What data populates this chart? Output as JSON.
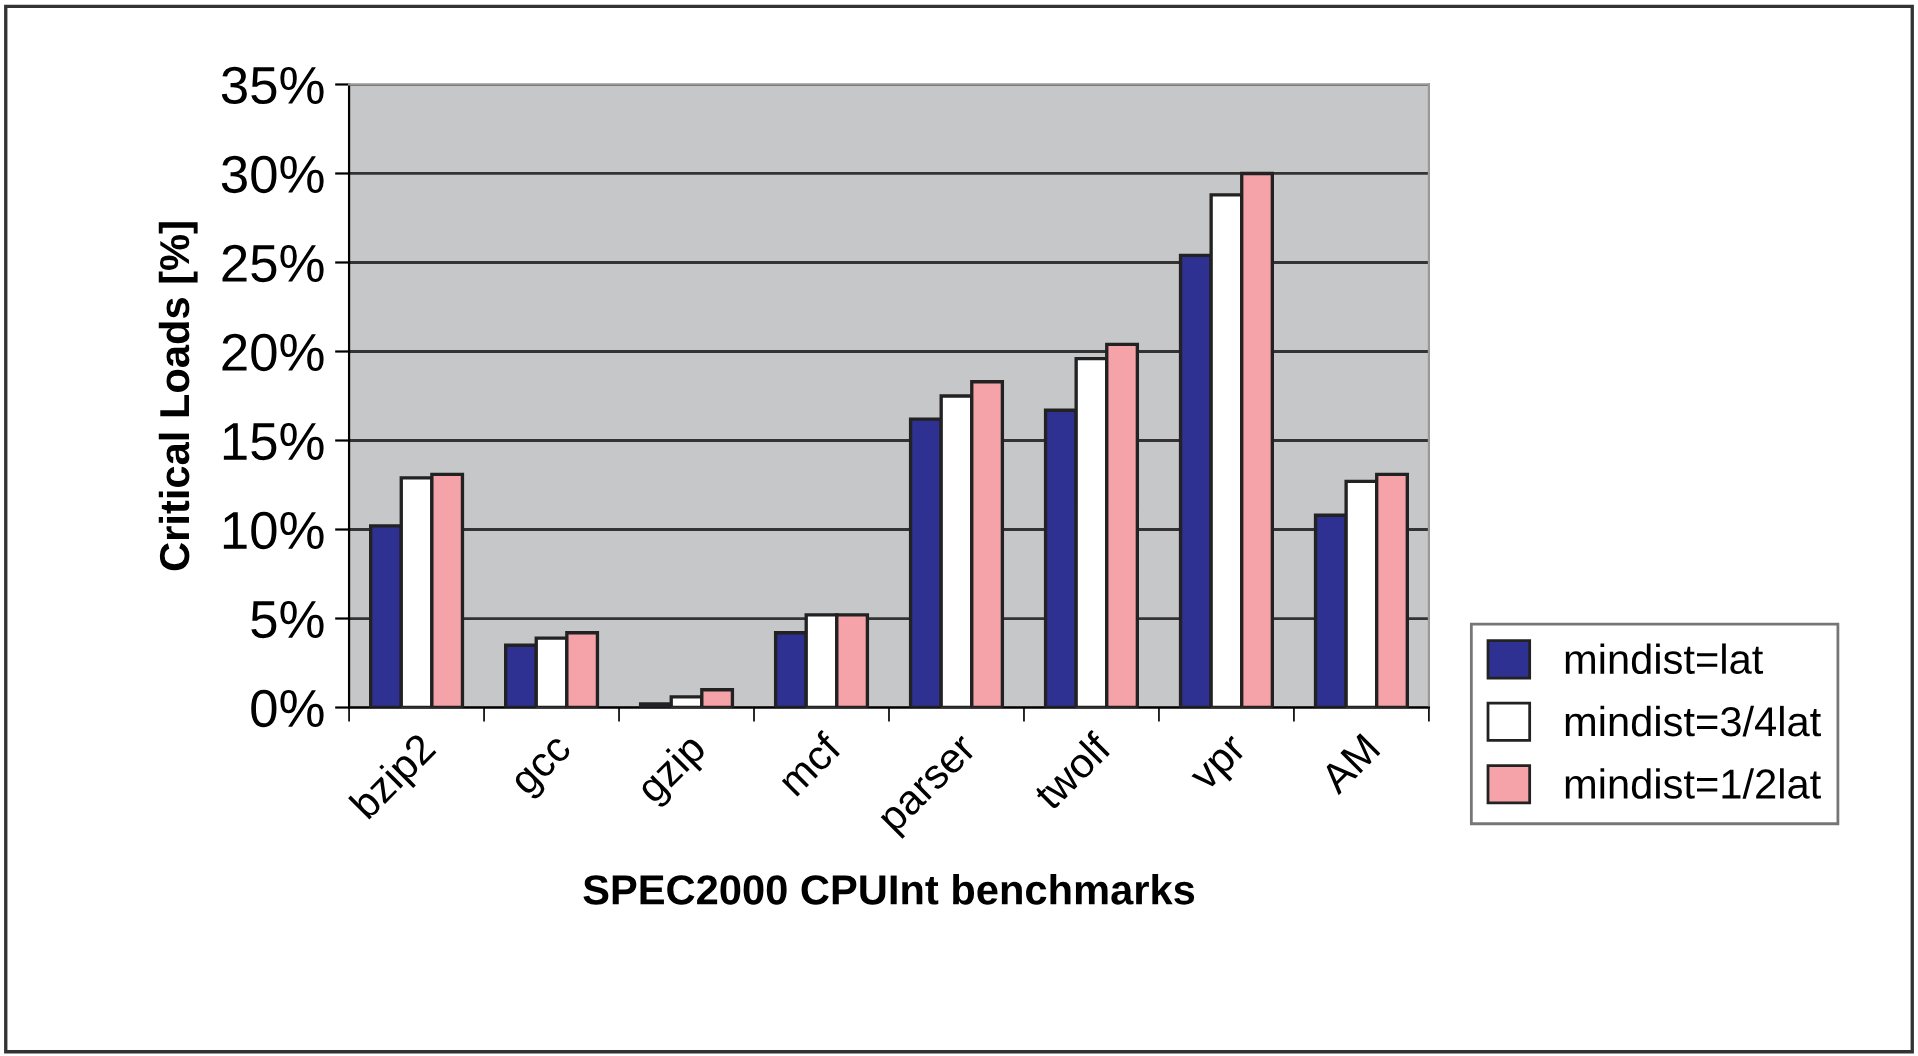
{
  "chart_data": {
    "type": "bar",
    "xlabel": "SPEC2000 CPUInt benchmarks",
    "ylabel": "Critical Loads [%]",
    "categories": [
      "bzip2",
      "gcc",
      "gzip",
      "mcf",
      "parser",
      "twolf",
      "vpr",
      "AM"
    ],
    "series": [
      {
        "name": "mindist=lat",
        "color": "#2e3192",
        "values": [
          10.2,
          3.5,
          0.2,
          4.2,
          16.2,
          16.7,
          25.4,
          10.8
        ]
      },
      {
        "name": "mindist=3/4lat",
        "color": "#ffffff",
        "values": [
          12.9,
          3.9,
          0.6,
          5.2,
          17.5,
          19.6,
          28.8,
          12.7
        ]
      },
      {
        "name": "mindist=1/2lat",
        "color": "#f5a3a8",
        "values": [
          13.1,
          4.2,
          1.0,
          5.2,
          18.3,
          20.4,
          30.0,
          13.1
        ]
      }
    ],
    "ylim": [
      0,
      35
    ],
    "yticks": [
      {
        "value": 0,
        "label": "0%"
      },
      {
        "value": 5,
        "label": "5%"
      },
      {
        "value": 10,
        "label": "10%"
      },
      {
        "value": 15,
        "label": "15%"
      },
      {
        "value": 20,
        "label": "20%"
      },
      {
        "value": 25,
        "label": "25%"
      },
      {
        "value": 30,
        "label": "30%"
      },
      {
        "value": 35,
        "label": "35%"
      }
    ],
    "grid": "y",
    "legend": "right"
  }
}
